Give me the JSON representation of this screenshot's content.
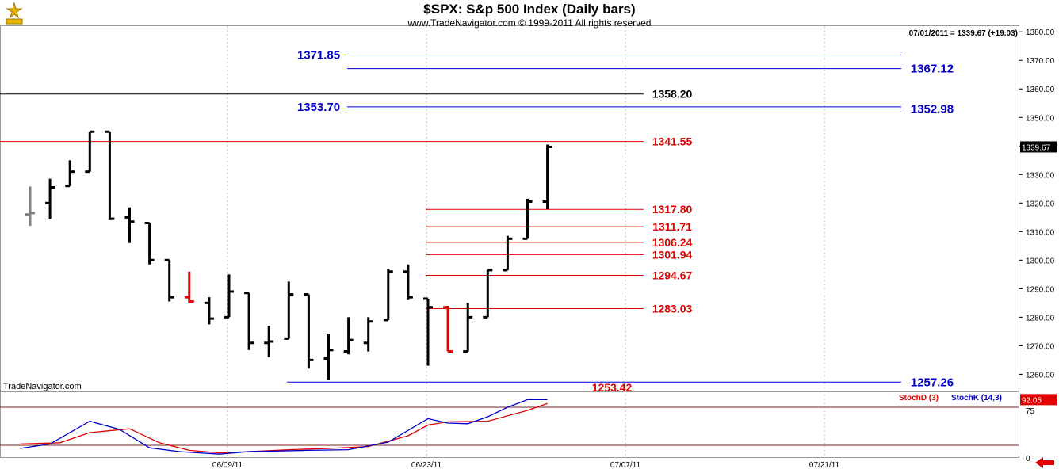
{
  "header": {
    "title": "$SPX:  S&p 500 Index  (Daily bars)",
    "subtitle": "www.TradeNavigator.com © 1999-2011 All rights reserved",
    "last_info": "07/01/2011 = 1339.67 (+19.03)",
    "watermark": "TradeNavigator.com"
  },
  "colors": {
    "price_bar": "#000000",
    "down_bar": "#e00000",
    "blue_level": "#0000cc",
    "red_level": "#e00000",
    "black_level": "#000000",
    "stochd": "#dd0000",
    "stochk": "#0000cc",
    "grid": "#b8b8b8"
  },
  "chart_data": [
    {
      "type": "bar",
      "style": "ohlc",
      "title": "$SPX:  S&p 500 Index  (Daily bars)",
      "ylim": [
        1254,
        1382
      ],
      "y_ticks": [
        "1260.00",
        "1270.00",
        "1280.00",
        "1290.00",
        "1300.00",
        "1310.00",
        "1320.00",
        "1330.00",
        "1340.00",
        "1350.00",
        "1360.00",
        "1370.00",
        "1380.00"
      ],
      "x_ticks": [
        {
          "label": "06/09/11",
          "index": 10
        },
        {
          "label": "06/23/11",
          "index": 20
        },
        {
          "label": "07/07/11",
          "index": 30
        },
        {
          "label": "07/21/11",
          "index": 40
        }
      ],
      "last_price_label": "1339.67",
      "bars": [
        {
          "i": 0,
          "o": 1316.0,
          "h": 1325.8,
          "l": 1312.0,
          "c": 1316.5,
          "color": "gray"
        },
        {
          "i": 1,
          "o": 1320.0,
          "h": 1328.5,
          "l": 1314.5,
          "c": 1325.5
        },
        {
          "i": 2,
          "o": 1326.0,
          "h": 1335.0,
          "l": 1326.0,
          "c": 1331.0
        },
        {
          "i": 3,
          "o": 1331.0,
          "h": 1345.0,
          "l": 1331.0,
          "c": 1345.0
        },
        {
          "i": 4,
          "o": 1345.0,
          "h": 1345.0,
          "l": 1314.0,
          "c": 1314.5
        },
        {
          "i": 5,
          "o": 1315.0,
          "h": 1318.5,
          "l": 1306.0,
          "c": 1313.5
        },
        {
          "i": 6,
          "o": 1313.0,
          "h": 1313.0,
          "l": 1298.5,
          "c": 1300.0
        },
        {
          "i": 7,
          "o": 1300.0,
          "h": 1300.0,
          "l": 1285.5,
          "c": 1287.0
        },
        {
          "i": 8,
          "o": 1287.0,
          "h": 1296.0,
          "l": 1285.0,
          "c": 1285.5,
          "color": "red"
        },
        {
          "i": 9,
          "o": 1285.0,
          "h": 1287.0,
          "l": 1277.5,
          "c": 1279.5
        },
        {
          "i": 10,
          "o": 1280.0,
          "h": 1295.0,
          "l": 1280.0,
          "c": 1289.0
        },
        {
          "i": 11,
          "o": 1288.5,
          "h": 1288.5,
          "l": 1268.5,
          "c": 1271.0
        },
        {
          "i": 12,
          "o": 1271.0,
          "h": 1277.0,
          "l": 1266.0,
          "c": 1271.5
        },
        {
          "i": 13,
          "o": 1272.5,
          "h": 1292.5,
          "l": 1272.5,
          "c": 1288.0
        },
        {
          "i": 14,
          "o": 1288.0,
          "h": 1288.0,
          "l": 1262.0,
          "c": 1265.0
        },
        {
          "i": 15,
          "o": 1265.5,
          "h": 1274.0,
          "l": 1258.0,
          "c": 1268.5
        },
        {
          "i": 16,
          "o": 1268.0,
          "h": 1280.0,
          "l": 1267.0,
          "c": 1272.0
        },
        {
          "i": 17,
          "o": 1271.0,
          "h": 1280.0,
          "l": 1268.0,
          "c": 1278.5
        },
        {
          "i": 18,
          "o": 1279.0,
          "h": 1297.0,
          "l": 1279.0,
          "c": 1296.0
        },
        {
          "i": 19,
          "o": 1296.0,
          "h": 1298.5,
          "l": 1286.0,
          "c": 1287.0
        },
        {
          "i": 20,
          "o": 1286.5,
          "h": 1286.5,
          "l": 1263.0,
          "c": 1283.5
        },
        {
          "i": 21,
          "o": 1283.5,
          "h": 1284.0,
          "l": 1268.0,
          "c": 1268.0,
          "color": "red"
        },
        {
          "i": 22,
          "o": 1268.0,
          "h": 1285.0,
          "l": 1268.0,
          "c": 1280.0
        },
        {
          "i": 23,
          "o": 1280.0,
          "h": 1296.5,
          "l": 1280.0,
          "c": 1296.5
        },
        {
          "i": 24,
          "o": 1296.5,
          "h": 1308.5,
          "l": 1296.5,
          "c": 1307.5
        },
        {
          "i": 25,
          "o": 1307.5,
          "h": 1321.5,
          "l": 1307.5,
          "c": 1320.5
        },
        {
          "i": 26,
          "o": 1320.5,
          "h": 1340.5,
          "l": 1317.8,
          "c": 1339.67
        }
      ],
      "levels": [
        {
          "value": 1371.85,
          "label": "1371.85",
          "color": "blue",
          "label_side": "left"
        },
        {
          "value": 1367.12,
          "label": "1367.12",
          "color": "blue",
          "label_side": "right"
        },
        {
          "value": 1358.2,
          "label": "1358.20",
          "color": "black",
          "label_side": "right"
        },
        {
          "value": 1353.7,
          "label": "1353.70",
          "color": "blue",
          "label_side": "left"
        },
        {
          "value": 1352.98,
          "label": "1352.98",
          "color": "blue",
          "label_side": "right"
        },
        {
          "value": 1341.55,
          "label": "1341.55",
          "color": "red",
          "label_side": "right"
        },
        {
          "value": 1317.8,
          "label": "1317.80",
          "color": "red",
          "label_side": "right"
        },
        {
          "value": 1311.71,
          "label": "1311.71",
          "color": "red",
          "label_side": "right"
        },
        {
          "value": 1306.24,
          "label": "1306.24",
          "color": "red",
          "label_side": "right"
        },
        {
          "value": 1301.94,
          "label": "1301.94",
          "color": "red",
          "label_side": "right"
        },
        {
          "value": 1294.67,
          "label": "1294.67",
          "color": "red",
          "label_side": "right"
        },
        {
          "value": 1283.03,
          "label": "1283.03",
          "color": "red",
          "label_side": "right"
        },
        {
          "value": 1257.26,
          "label": "1257.26",
          "color": "blue",
          "label_side": "right"
        },
        {
          "value": 1253.42,
          "label": "1253.42",
          "color": "red",
          "label_side": "right"
        }
      ]
    },
    {
      "type": "line",
      "title": "",
      "ylim": [
        0,
        100
      ],
      "y_ticks": [
        "0",
        "75"
      ],
      "last_value_label": "92.05",
      "reference_lines": [
        20,
        80
      ],
      "series": [
        {
          "name": "StochD (3)",
          "color": "red",
          "values": [
            {
              "x": -0.5,
              "y": 22
            },
            {
              "x": 1.5,
              "y": 24
            },
            {
              "x": 3.0,
              "y": 40
            },
            {
              "x": 5.0,
              "y": 46
            },
            {
              "x": 6.5,
              "y": 24
            },
            {
              "x": 8.0,
              "y": 12
            },
            {
              "x": 9.5,
              "y": 8
            },
            {
              "x": 11.0,
              "y": 10
            },
            {
              "x": 13.0,
              "y": 13
            },
            {
              "x": 15.0,
              "y": 15
            },
            {
              "x": 17.0,
              "y": 18
            },
            {
              "x": 19.0,
              "y": 35
            },
            {
              "x": 20.0,
              "y": 52
            },
            {
              "x": 21.0,
              "y": 57
            },
            {
              "x": 23.0,
              "y": 58
            },
            {
              "x": 25.0,
              "y": 75
            },
            {
              "x": 26.0,
              "y": 86
            }
          ]
        },
        {
          "name": "StochK (14,3)",
          "color": "blue",
          "values": [
            {
              "x": -0.5,
              "y": 15
            },
            {
              "x": 1.0,
              "y": 22
            },
            {
              "x": 3.0,
              "y": 58
            },
            {
              "x": 4.5,
              "y": 45
            },
            {
              "x": 6.0,
              "y": 16
            },
            {
              "x": 7.5,
              "y": 10
            },
            {
              "x": 9.5,
              "y": 6
            },
            {
              "x": 11.0,
              "y": 10
            },
            {
              "x": 14.0,
              "y": 12
            },
            {
              "x": 16.0,
              "y": 13
            },
            {
              "x": 18.0,
              "y": 25
            },
            {
              "x": 20.0,
              "y": 62
            },
            {
              "x": 21.0,
              "y": 55
            },
            {
              "x": 22.0,
              "y": 54
            },
            {
              "x": 23.0,
              "y": 65
            },
            {
              "x": 24.0,
              "y": 80
            },
            {
              "x": 25.0,
              "y": 92
            },
            {
              "x": 26.0,
              "y": 92.05
            }
          ]
        }
      ]
    }
  ]
}
